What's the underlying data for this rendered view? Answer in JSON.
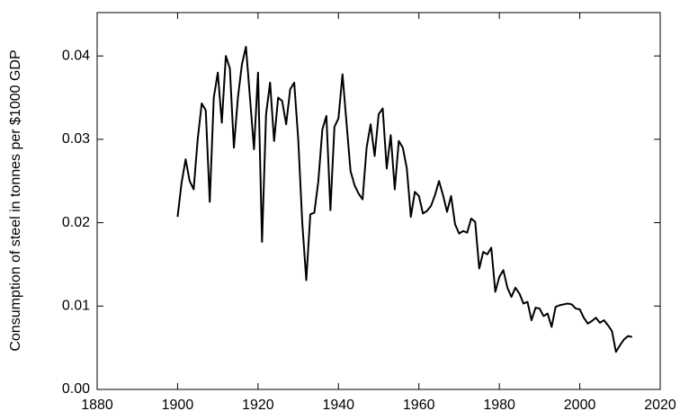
{
  "chart_data": {
    "type": "line",
    "y_label": "Consumption of steel in tonnes per $1000 GDP",
    "x": [
      1900,
      1901,
      1902,
      1903,
      1904,
      1905,
      1906,
      1907,
      1908,
      1909,
      1910,
      1911,
      1912,
      1913,
      1914,
      1915,
      1916,
      1917,
      1918,
      1919,
      1920,
      1921,
      1922,
      1923,
      1924,
      1925,
      1926,
      1927,
      1928,
      1929,
      1930,
      1931,
      1932,
      1933,
      1934,
      1935,
      1936,
      1937,
      1938,
      1939,
      1940,
      1941,
      1942,
      1943,
      1944,
      1945,
      1946,
      1947,
      1948,
      1949,
      1950,
      1951,
      1952,
      1953,
      1954,
      1955,
      1956,
      1957,
      1958,
      1959,
      1960,
      1961,
      1962,
      1963,
      1964,
      1965,
      1966,
      1967,
      1968,
      1969,
      1970,
      1971,
      1972,
      1973,
      1974,
      1975,
      1976,
      1977,
      1978,
      1979,
      1980,
      1981,
      1982,
      1983,
      1984,
      1985,
      1986,
      1987,
      1988,
      1989,
      1990,
      1991,
      1992,
      1993,
      1994,
      1995,
      1996,
      1997,
      1998,
      1999,
      2000,
      2001,
      2002,
      2003,
      2004,
      2005,
      2006,
      2007,
      2008,
      2009,
      2010,
      2011,
      2012,
      2013
    ],
    "series": [
      {
        "color": "#000000",
        "values": [
          0.0207,
          0.0248,
          0.0276,
          0.025,
          0.024,
          0.03,
          0.0343,
          0.0335,
          0.0225,
          0.035,
          0.038,
          0.032,
          0.04,
          0.0385,
          0.029,
          0.035,
          0.039,
          0.0411,
          0.035,
          0.0288,
          0.038,
          0.0177,
          0.033,
          0.0368,
          0.0298,
          0.035,
          0.0346,
          0.0318,
          0.036,
          0.0368,
          0.03,
          0.02,
          0.0131,
          0.021,
          0.0212,
          0.025,
          0.0312,
          0.0328,
          0.0215,
          0.0315,
          0.0325,
          0.0378,
          0.032,
          0.0262,
          0.0245,
          0.0235,
          0.0228,
          0.029,
          0.0318,
          0.028,
          0.033,
          0.0337,
          0.0265,
          0.0305,
          0.024,
          0.0298,
          0.029,
          0.0265,
          0.0207,
          0.0237,
          0.0232,
          0.0211,
          0.0214,
          0.022,
          0.0233,
          0.025,
          0.0233,
          0.0213,
          0.0232,
          0.0198,
          0.0187,
          0.019,
          0.0188,
          0.0205,
          0.0201,
          0.0145,
          0.0165,
          0.0162,
          0.017,
          0.0117,
          0.0135,
          0.0143,
          0.0122,
          0.0111,
          0.0122,
          0.0115,
          0.0103,
          0.0105,
          0.0083,
          0.0098,
          0.0097,
          0.0088,
          0.0091,
          0.0075,
          0.0099,
          0.0101,
          0.0102,
          0.0103,
          0.0102,
          0.0097,
          0.0096,
          0.0086,
          0.0079,
          0.0082,
          0.0086,
          0.008,
          0.0083,
          0.0077,
          0.007,
          0.0045,
          0.0053,
          0.006,
          0.0064,
          0.0063
        ]
      }
    ],
    "xlim": [
      1880,
      2020
    ],
    "xticks": [
      1880,
      1900,
      1920,
      1940,
      1960,
      1980,
      2000,
      2020
    ],
    "ylim": [
      0,
      0.0452
    ],
    "yticks": [
      {
        "value": 0,
        "label": "0.00"
      },
      0.01,
      0.02,
      0.03,
      0.04
    ]
  }
}
